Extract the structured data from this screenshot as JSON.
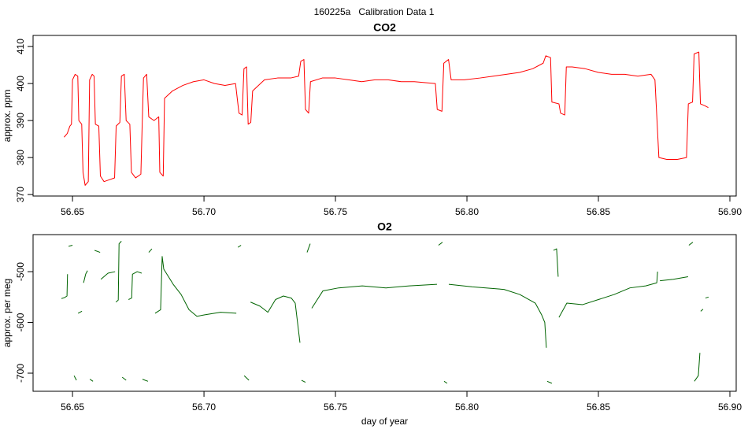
{
  "title": "160225a   Calibration Data 1",
  "chart_data": [
    {
      "type": "line",
      "title": "CO2",
      "ylabel": "approx. ppm",
      "x": [
        56.6468,
        56.648,
        56.649,
        56.6496,
        56.65,
        56.651,
        56.652,
        56.6524,
        56.6535,
        56.654,
        56.6548,
        56.656,
        56.6565,
        56.6575,
        56.6582,
        56.6587,
        56.66,
        56.6606,
        56.662,
        56.664,
        56.666,
        56.6666,
        56.668,
        56.6686,
        56.6697,
        56.6704,
        56.6718,
        56.6724,
        56.674,
        56.676,
        56.6765,
        56.677,
        56.6782,
        56.679,
        56.681,
        56.6828,
        56.6832,
        56.6845,
        56.685,
        56.688,
        56.692,
        56.696,
        56.7,
        56.704,
        56.708,
        56.712,
        56.7133,
        56.7145,
        56.7152,
        56.7162,
        56.7168,
        56.7178,
        56.7185,
        56.723,
        56.728,
        56.733,
        56.736,
        56.7368,
        56.738,
        56.7386,
        56.7398,
        56.7405,
        56.745,
        56.75,
        56.755,
        56.76,
        56.765,
        56.77,
        56.775,
        56.78,
        56.788,
        56.7887,
        56.7905,
        56.7912,
        56.793,
        56.794,
        56.799,
        56.805,
        56.81,
        56.815,
        56.82,
        56.825,
        56.829,
        56.83,
        56.8318,
        56.8323,
        56.835,
        56.8356,
        56.8372,
        56.8378,
        56.84,
        56.845,
        56.85,
        56.855,
        56.86,
        56.865,
        56.87,
        56.8715,
        56.873,
        56.876,
        56.88,
        56.8835,
        56.8842,
        56.8858,
        56.8864,
        56.8882,
        56.8888,
        56.8905,
        56.8918
      ],
      "series": [
        {
          "color": "#ff0000",
          "values": [
            385.5,
            386.5,
            388.5,
            389,
            401,
            402.5,
            402,
            390,
            389,
            376,
            372.5,
            373.5,
            401,
            402.5,
            402,
            389,
            388.5,
            375,
            373.5,
            374,
            374.5,
            388.5,
            389.5,
            402,
            402.5,
            390,
            389,
            376,
            374.5,
            375.5,
            389,
            401.5,
            402.5,
            391,
            390,
            391,
            376,
            375,
            396,
            398,
            399.5,
            400.5,
            401,
            400,
            399.5,
            400,
            392,
            391.5,
            404,
            404.5,
            389,
            389.5,
            398,
            401,
            401.5,
            401.5,
            402,
            406,
            406.5,
            393,
            392,
            400.5,
            401.5,
            401.5,
            401,
            400.5,
            401,
            401,
            400.5,
            400.5,
            400,
            393,
            392.5,
            405.5,
            406.5,
            401,
            401,
            401.5,
            402,
            402.5,
            403,
            404,
            405.5,
            407.5,
            407,
            395,
            394.5,
            392,
            391.5,
            404.5,
            404.5,
            404,
            403,
            402.5,
            402.5,
            402,
            402.5,
            401,
            380,
            379.5,
            379.5,
            380,
            394.5,
            395,
            408,
            408.5,
            394.5,
            394,
            393.5
          ]
        }
      ],
      "xlim": [
        56.635,
        56.9024
      ],
      "ylim": [
        369.6,
        413
      ],
      "xticks": [
        56.65,
        {
          "value": 56.7,
          "label": "56.70"
        },
        56.75,
        {
          "value": 56.8,
          "label": "56.80"
        },
        56.85,
        {
          "value": 56.9,
          "label": "56.90"
        }
      ],
      "yticks": [
        370,
        380,
        390,
        400,
        410
      ]
    },
    {
      "type": "line",
      "title": "O2",
      "ylabel": "approx. per meg",
      "xlabel": "day of year",
      "x": [
        56.6458,
        56.647,
        56.6479,
        56.6481,
        null,
        56.6485,
        56.65,
        null,
        56.6506,
        56.6515,
        null,
        56.6521,
        56.6536,
        null,
        56.6542,
        56.655,
        56.6557,
        null,
        56.6566,
        56.6578,
        null,
        56.6584,
        56.6605,
        null,
        56.6608,
        56.6635,
        56.6662,
        null,
        56.6665,
        56.6674,
        56.6677,
        56.6686,
        null,
        56.6689,
        56.6704,
        null,
        56.6713,
        56.6725,
        56.6728,
        56.6746,
        56.6763,
        null,
        56.6766,
        56.6787,
        null,
        56.679,
        56.6802,
        null,
        56.6814,
        56.6835,
        56.6841,
        56.6847,
        56.6883,
        56.6913,
        56.6943,
        56.6973,
        56.7003,
        56.7063,
        56.7123,
        null,
        56.7129,
        56.7141,
        null,
        56.7153,
        56.7171,
        null,
        56.7177,
        56.7213,
        56.7243,
        56.7272,
        56.7302,
        56.7332,
        56.7347,
        56.7365,
        null,
        56.7371,
        56.7386,
        null,
        56.7392,
        56.7404,
        null,
        56.741,
        56.7452,
        56.7512,
        56.7602,
        56.7692,
        56.7781,
        56.7886,
        null,
        56.7892,
        56.7907,
        null,
        56.7913,
        56.7925,
        null,
        56.7931,
        56.8021,
        56.8141,
        56.8201,
        56.826,
        56.8284,
        56.8296,
        56.8302,
        null,
        56.8305,
        56.8323,
        null,
        56.8329,
        56.8341,
        56.8347,
        null,
        56.835,
        56.838,
        56.844,
        56.85,
        56.856,
        56.862,
        56.868,
        56.8722,
        56.8725,
        null,
        56.8734,
        56.8785,
        56.8841,
        null,
        56.8844,
        56.8859,
        null,
        56.8865,
        56.888,
        56.8886,
        null,
        56.8889,
        56.8898,
        null,
        56.8907,
        56.8919
      ],
      "series": [
        {
          "color": "#006400",
          "values": [
            -553,
            -551,
            -548,
            -505,
            null,
            -450,
            -448,
            null,
            -705,
            -714,
            null,
            -582,
            -578,
            null,
            -522,
            -505,
            -498,
            null,
            -712,
            -716,
            null,
            -458,
            -462,
            null,
            -515,
            -503,
            -500,
            null,
            -560,
            -556,
            -445,
            -440,
            null,
            -708,
            -714,
            null,
            -555,
            -552,
            -505,
            -500,
            -503,
            null,
            -712,
            -716,
            null,
            -462,
            -455,
            null,
            -582,
            -575,
            -470,
            -495,
            -525,
            -545,
            -575,
            -588,
            -585,
            -580,
            -582,
            null,
            -452,
            -448,
            null,
            -705,
            -714,
            null,
            -560,
            -568,
            -580,
            -555,
            -548,
            -552,
            -562,
            -640,
            null,
            -714,
            -718,
            null,
            -462,
            -445,
            null,
            -572,
            -538,
            -532,
            -528,
            -532,
            -528,
            -525,
            null,
            -448,
            -442,
            null,
            -716,
            -720,
            null,
            -525,
            -530,
            -535,
            -545,
            -562,
            -585,
            -600,
            -650,
            null,
            -716,
            -720,
            null,
            -458,
            -455,
            -510,
            null,
            -590,
            -562,
            -565,
            -555,
            -545,
            -532,
            -528,
            -522,
            -500,
            null,
            -518,
            -515,
            -510,
            null,
            -448,
            -442,
            null,
            -716,
            -705,
            -660,
            null,
            -578,
            -574,
            null,
            -552,
            -550
          ]
        }
      ],
      "xlim": [
        56.635,
        56.9024
      ],
      "ylim": [
        -735.7,
        -427
      ],
      "xticks": [
        56.65,
        {
          "value": 56.7,
          "label": "56.70"
        },
        56.75,
        {
          "value": 56.8,
          "label": "56.80"
        },
        56.85,
        {
          "value": 56.9,
          "label": "56.90"
        }
      ],
      "yticks": [
        -700,
        -600,
        -500
      ]
    }
  ]
}
